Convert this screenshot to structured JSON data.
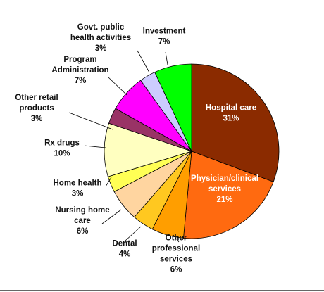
{
  "chart_data": {
    "type": "pie",
    "title": "",
    "start": "12 o'clock, clockwise",
    "slices": [
      {
        "label": [
          "Hospital care",
          "31%"
        ],
        "value": 31,
        "color": "#8B2B00",
        "text_color": "#ffffff"
      },
      {
        "label": [
          "Physician/clinical",
          "services",
          "21%"
        ],
        "value": 21,
        "color": "#FF6A10",
        "text_color": "#ffffff"
      },
      {
        "label": [
          "Other",
          "professional",
          "services",
          "6%"
        ],
        "value": 6,
        "color": "#FF9E00",
        "text_color": "#111111"
      },
      {
        "label": [
          "Dental",
          "4%"
        ],
        "value": 4,
        "color": "#FFC820",
        "text_color": "#111111"
      },
      {
        "label": [
          "Nursing home",
          "care",
          "6%"
        ],
        "value": 6,
        "color": "#FFD5A0",
        "text_color": "#111111"
      },
      {
        "label": [
          "Home health",
          "3%"
        ],
        "value": 3,
        "color": "#FFFF55",
        "text_color": "#111111"
      },
      {
        "label": [
          "Rx drugs",
          "10%"
        ],
        "value": 10,
        "color": "#FFFFC0",
        "text_color": "#111111"
      },
      {
        "label": [
          "Other retail",
          "products",
          "3%"
        ],
        "value": 3,
        "color": "#993366",
        "text_color": "#111111"
      },
      {
        "label": [
          "Program",
          "Administration",
          "7%"
        ],
        "value": 7,
        "color": "#FF00FF",
        "text_color": "#111111"
      },
      {
        "label": [
          "Govt. public",
          "health activities",
          "3%"
        ],
        "value": 3,
        "color": "#CCCCFF",
        "text_color": "#111111"
      },
      {
        "label": [
          "Investment",
          "7%"
        ],
        "value": 7,
        "color": "#00FF00",
        "text_color": "#111111"
      }
    ]
  }
}
